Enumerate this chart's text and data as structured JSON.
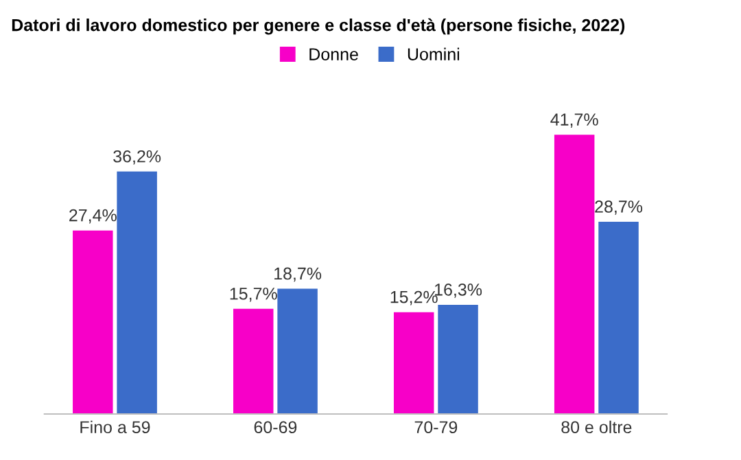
{
  "chart_data": {
    "type": "bar",
    "title": "Datori di lavoro domestico per genere e classe d'età (persone fisiche, 2022)",
    "categories": [
      "Fino a 59",
      "60-69",
      "70-79",
      "80 e oltre"
    ],
    "series": [
      {
        "name": "Donne",
        "color": "#f700c8",
        "values": [
          27.4,
          15.7,
          15.2,
          41.7
        ],
        "value_labels": [
          "27,4%",
          "15,7%",
          "15,2%",
          "41,7%"
        ]
      },
      {
        "name": "Uomini",
        "color": "#3b6cc9",
        "values": [
          36.2,
          18.7,
          16.3,
          28.7
        ],
        "value_labels": [
          "36,2%",
          "18,7%",
          "16,3%",
          "28,7%"
        ]
      }
    ],
    "legend": "top",
    "grid": false
  }
}
